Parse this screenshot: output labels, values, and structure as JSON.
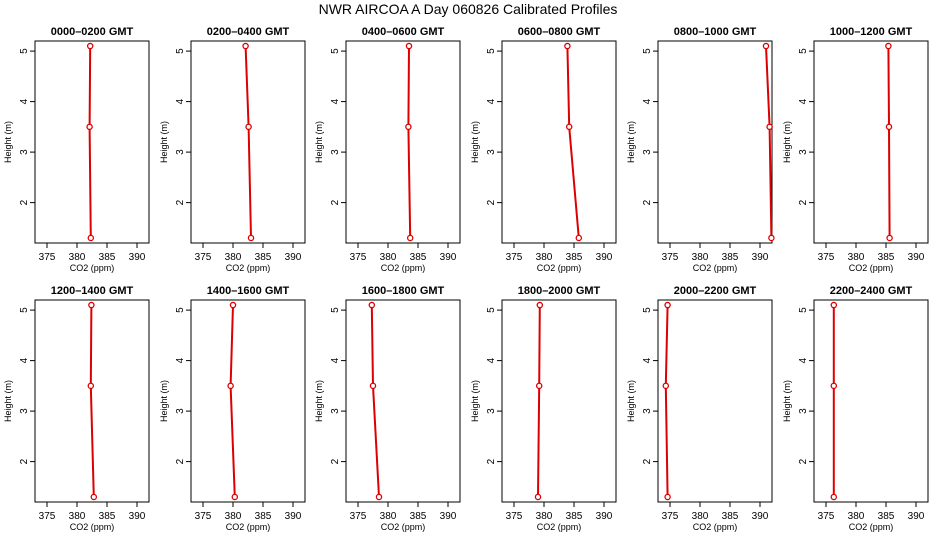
{
  "figure": {
    "title": "NWR AIRCOA A  Day 060826  Calibrated Profiles",
    "colors": {
      "profile": "#dd0000",
      "axis": "#000000",
      "background": "#ffffff"
    }
  },
  "chart_data": [
    {
      "type": "line",
      "title": "0000–0200 GMT",
      "xlabel": "CO2 (ppm)",
      "ylabel": "Height (m)",
      "xlim": [
        373,
        392
      ],
      "ylim": [
        1.2,
        5.2
      ],
      "xticks": [
        375,
        380,
        385,
        390
      ],
      "yticks": [
        2,
        3,
        4,
        5
      ],
      "grid": false,
      "series": [
        {
          "values": [
            {
              "x": 382.2,
              "y": 5.1
            },
            {
              "x": 382.1,
              "y": 3.5
            },
            {
              "x": 382.3,
              "y": 1.3
            }
          ]
        }
      ]
    },
    {
      "type": "line",
      "title": "0200–0400 GMT",
      "xlabel": "CO2 (ppm)",
      "ylabel": "Height (m)",
      "xlim": [
        373,
        392
      ],
      "ylim": [
        1.2,
        5.2
      ],
      "xticks": [
        375,
        380,
        385,
        390
      ],
      "yticks": [
        2,
        3,
        4,
        5
      ],
      "grid": false,
      "series": [
        {
          "values": [
            {
              "x": 382.1,
              "y": 5.1
            },
            {
              "x": 382.6,
              "y": 3.5
            },
            {
              "x": 383.0,
              "y": 1.3
            }
          ]
        }
      ]
    },
    {
      "type": "line",
      "title": "0400–0600 GMT",
      "xlabel": "CO2 (ppm)",
      "ylabel": "Height (m)",
      "xlim": [
        373,
        392
      ],
      "ylim": [
        1.2,
        5.2
      ],
      "xticks": [
        375,
        380,
        385,
        390
      ],
      "yticks": [
        2,
        3,
        4,
        5
      ],
      "grid": false,
      "series": [
        {
          "values": [
            {
              "x": 383.5,
              "y": 5.1
            },
            {
              "x": 383.4,
              "y": 3.5
            },
            {
              "x": 383.7,
              "y": 1.3
            }
          ]
        }
      ]
    },
    {
      "type": "line",
      "title": "0600–0800 GMT",
      "xlabel": "CO2 (ppm)",
      "ylabel": "Height (m)",
      "xlim": [
        373,
        392
      ],
      "ylim": [
        1.2,
        5.2
      ],
      "xticks": [
        375,
        380,
        385,
        390
      ],
      "yticks": [
        2,
        3,
        4,
        5
      ],
      "grid": false,
      "series": [
        {
          "values": [
            {
              "x": 383.9,
              "y": 5.1
            },
            {
              "x": 384.2,
              "y": 3.5
            },
            {
              "x": 385.8,
              "y": 1.3
            }
          ]
        }
      ]
    },
    {
      "type": "line",
      "title": "0800–1000 GMT",
      "xlabel": "CO2 (ppm)",
      "ylabel": "Height (m)",
      "xlim": [
        373,
        392
      ],
      "ylim": [
        1.2,
        5.2
      ],
      "xticks": [
        375,
        380,
        385,
        390
      ],
      "yticks": [
        2,
        3,
        4,
        5
      ],
      "grid": false,
      "series": [
        {
          "values": [
            {
              "x": 391.0,
              "y": 5.1
            },
            {
              "x": 391.6,
              "y": 3.5
            },
            {
              "x": 391.9,
              "y": 1.3
            }
          ]
        }
      ]
    },
    {
      "type": "line",
      "title": "1000–1200 GMT",
      "xlabel": "CO2 (ppm)",
      "ylabel": "Height (m)",
      "xlim": [
        373,
        392
      ],
      "ylim": [
        1.2,
        5.2
      ],
      "xticks": [
        375,
        380,
        385,
        390
      ],
      "yticks": [
        2,
        3,
        4,
        5
      ],
      "grid": false,
      "series": [
        {
          "values": [
            {
              "x": 385.4,
              "y": 5.1
            },
            {
              "x": 385.5,
              "y": 3.5
            },
            {
              "x": 385.6,
              "y": 1.3
            }
          ]
        }
      ]
    },
    {
      "type": "line",
      "title": "1200–1400 GMT",
      "xlabel": "CO2 (ppm)",
      "ylabel": "Height (m)",
      "xlim": [
        373,
        392
      ],
      "ylim": [
        1.2,
        5.2
      ],
      "xticks": [
        375,
        380,
        385,
        390
      ],
      "yticks": [
        2,
        3,
        4,
        5
      ],
      "grid": false,
      "series": [
        {
          "values": [
            {
              "x": 382.4,
              "y": 5.1
            },
            {
              "x": 382.3,
              "y": 3.5
            },
            {
              "x": 382.8,
              "y": 1.3
            }
          ]
        }
      ]
    },
    {
      "type": "line",
      "title": "1400–1600 GMT",
      "xlabel": "CO2 (ppm)",
      "ylabel": "Height (m)",
      "xlim": [
        373,
        392
      ],
      "ylim": [
        1.2,
        5.2
      ],
      "xticks": [
        375,
        380,
        385,
        390
      ],
      "yticks": [
        2,
        3,
        4,
        5
      ],
      "grid": false,
      "series": [
        {
          "values": [
            {
              "x": 380.0,
              "y": 5.1
            },
            {
              "x": 379.6,
              "y": 3.5
            },
            {
              "x": 380.3,
              "y": 1.3
            }
          ]
        }
      ]
    },
    {
      "type": "line",
      "title": "1600–1800 GMT",
      "xlabel": "CO2 (ppm)",
      "ylabel": "Height (m)",
      "xlim": [
        373,
        392
      ],
      "ylim": [
        1.2,
        5.2
      ],
      "xticks": [
        375,
        380,
        385,
        390
      ],
      "yticks": [
        2,
        3,
        4,
        5
      ],
      "grid": false,
      "series": [
        {
          "values": [
            {
              "x": 377.3,
              "y": 5.1
            },
            {
              "x": 377.5,
              "y": 3.5
            },
            {
              "x": 378.5,
              "y": 1.3
            }
          ]
        }
      ]
    },
    {
      "type": "line",
      "title": "1800–2000 GMT",
      "xlabel": "CO2 (ppm)",
      "ylabel": "Height (m)",
      "xlim": [
        373,
        392
      ],
      "ylim": [
        1.2,
        5.2
      ],
      "xticks": [
        375,
        380,
        385,
        390
      ],
      "yticks": [
        2,
        3,
        4,
        5
      ],
      "grid": false,
      "series": [
        {
          "values": [
            {
              "x": 379.3,
              "y": 5.1
            },
            {
              "x": 379.2,
              "y": 3.5
            },
            {
              "x": 379.0,
              "y": 1.3
            }
          ]
        }
      ]
    },
    {
      "type": "line",
      "title": "2000–2200 GMT",
      "xlabel": "CO2 (ppm)",
      "ylabel": "Height (m)",
      "xlim": [
        373,
        392
      ],
      "ylim": [
        1.2,
        5.2
      ],
      "xticks": [
        375,
        380,
        385,
        390
      ],
      "yticks": [
        2,
        3,
        4,
        5
      ],
      "grid": false,
      "series": [
        {
          "values": [
            {
              "x": 374.6,
              "y": 5.1
            },
            {
              "x": 374.3,
              "y": 3.5
            },
            {
              "x": 374.6,
              "y": 1.3
            }
          ]
        }
      ]
    },
    {
      "type": "line",
      "title": "2200–2400 GMT",
      "xlabel": "CO2 (ppm)",
      "ylabel": "Height (m)",
      "xlim": [
        373,
        392
      ],
      "ylim": [
        1.2,
        5.2
      ],
      "xticks": [
        375,
        380,
        385,
        390
      ],
      "yticks": [
        2,
        3,
        4,
        5
      ],
      "grid": false,
      "series": [
        {
          "values": [
            {
              "x": 376.3,
              "y": 5.1
            },
            {
              "x": 376.3,
              "y": 3.5
            },
            {
              "x": 376.3,
              "y": 1.3
            }
          ]
        }
      ]
    }
  ]
}
